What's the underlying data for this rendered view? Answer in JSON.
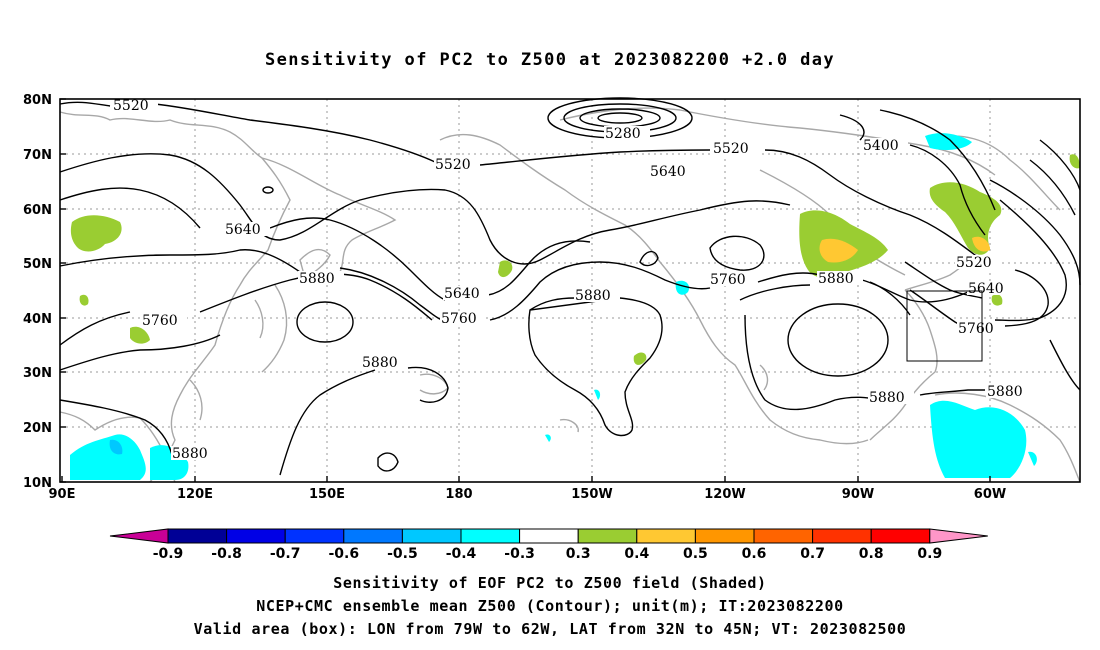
{
  "title": "Sensitivity of PC2 to Z500 at 2023082200 +2.0 day",
  "lat_labels": [
    "80N",
    "70N",
    "60N",
    "50N",
    "40N",
    "30N",
    "20N",
    "10N"
  ],
  "lon_labels": [
    "90E",
    "120E",
    "150E",
    "180",
    "150W",
    "120W",
    "90W",
    "60W"
  ],
  "contour_labels": [
    "5520",
    "5280",
    "5520",
    "5520",
    "5400",
    "5640",
    "5640",
    "5880",
    "5640",
    "5760",
    "5880",
    "5760",
    "5880",
    "5520",
    "5640",
    "5760",
    "5760",
    "5880",
    "5880",
    "5880"
  ],
  "colorbar": {
    "labels": [
      "-0.9",
      "-0.8",
      "-0.7",
      "-0.6",
      "-0.5",
      "-0.4",
      "-0.3",
      "0.3",
      "0.4",
      "0.5",
      "0.6",
      "0.7",
      "0.8",
      "0.9"
    ],
    "colors": [
      "#c80096",
      "#000096",
      "#0000e6",
      "#0032ff",
      "#0078ff",
      "#00c8ff",
      "#00ffff",
      "#ffffff",
      "#9acd32",
      "#ffc832",
      "#ff9600",
      "#ff6400",
      "#ff3200",
      "#ff0000",
      "#ff96c8"
    ]
  },
  "shading_colors": {
    "positive_low": "#9acd32",
    "positive_mid": "#ffc832",
    "negative_low": "#00ffff",
    "negative_mid": "#00c8ff"
  },
  "box_label": "Valid area (box)",
  "captions": [
    "Sensitivity of EOF PC2 to Z500 field (Shaded)",
    "NCEP+CMC ensemble mean Z500 (Contour); unit(m); IT:2023082200",
    "Valid area (box): LON from 79W to 62W, LAT from 32N to 45N; VT: 2023082500"
  ]
}
